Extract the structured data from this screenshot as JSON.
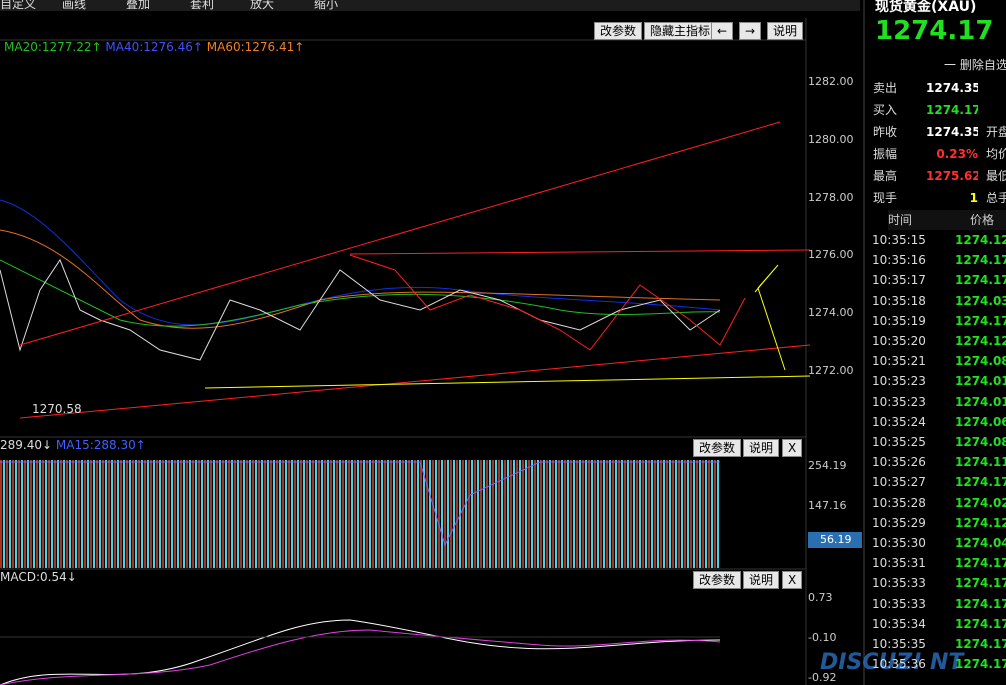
{
  "toolbar": [
    "自定义",
    "画线",
    "叠加",
    "套利",
    "放大",
    "缩小"
  ],
  "main_pane": {
    "buttons": [
      "改参数",
      "隐藏主指标",
      "←",
      "→",
      "说明"
    ],
    "indicators": [
      "MA20:1277.22↑",
      "MA40:1276.46↑",
      "MA60:1276.41↑"
    ],
    "price_axis": [
      "1282.00",
      "1280.00",
      "1278.00",
      "1276.00",
      "1274.00",
      "1272.00"
    ],
    "low_label": "1270.58"
  },
  "volume_pane": {
    "indicators": [
      "289.40↓",
      "MA15:288.30↑"
    ],
    "buttons": [
      "改参数",
      "说明",
      "X"
    ],
    "axis": [
      "254.19",
      "147.16"
    ],
    "current": "56.19"
  },
  "macd_pane": {
    "indicator": "MACD:0.54↓",
    "buttons": [
      "改参数",
      "说明",
      "X"
    ],
    "axis": [
      "0.73",
      "-0.10",
      "-0.92"
    ]
  },
  "quote": {
    "name": "现货黄金(XAU)",
    "price": "1274.17",
    "direction": "↓",
    "remove": "一 删除自选",
    "rows": [
      {
        "label": "卖出",
        "value": "1274.35",
        "extra": ""
      },
      {
        "label": "买入",
        "value": "1274.17",
        "extra": ""
      },
      {
        "label": "昨收",
        "value": "1274.35",
        "extra": "开盘"
      },
      {
        "label": "振幅",
        "value": "0.23%",
        "extra": "均价"
      },
      {
        "label": "最高",
        "value": "1275.62",
        "extra": "最低"
      },
      {
        "label": "现手",
        "value": "1",
        "extra": "总手"
      }
    ]
  },
  "ticks": {
    "headers": [
      "时间",
      "价格"
    ],
    "rows": [
      [
        "10:35:15",
        "1274.12"
      ],
      [
        "10:35:16",
        "1274.17"
      ],
      [
        "10:35:17",
        "1274.17"
      ],
      [
        "10:35:18",
        "1274.03"
      ],
      [
        "10:35:19",
        "1274.17"
      ],
      [
        "10:35:20",
        "1274.12"
      ],
      [
        "10:35:21",
        "1274.08"
      ],
      [
        "10:35:23",
        "1274.01"
      ],
      [
        "10:35:23",
        "1274.01"
      ],
      [
        "10:35:24",
        "1274.06"
      ],
      [
        "10:35:25",
        "1274.08"
      ],
      [
        "10:35:26",
        "1274.11"
      ],
      [
        "10:35:27",
        "1274.17"
      ],
      [
        "10:35:28",
        "1274.02"
      ],
      [
        "10:35:29",
        "1274.12"
      ],
      [
        "10:35:30",
        "1274.04"
      ],
      [
        "10:35:31",
        "1274.17"
      ],
      [
        "10:35:33",
        "1274.17"
      ],
      [
        "10:35:33",
        "1274.17"
      ],
      [
        "10:35:34",
        "1274.17"
      ],
      [
        "10:35:35",
        "1274.17"
      ],
      [
        "10:35:36",
        "1274.17"
      ]
    ]
  },
  "watermark": "DISCUZ! NT"
}
